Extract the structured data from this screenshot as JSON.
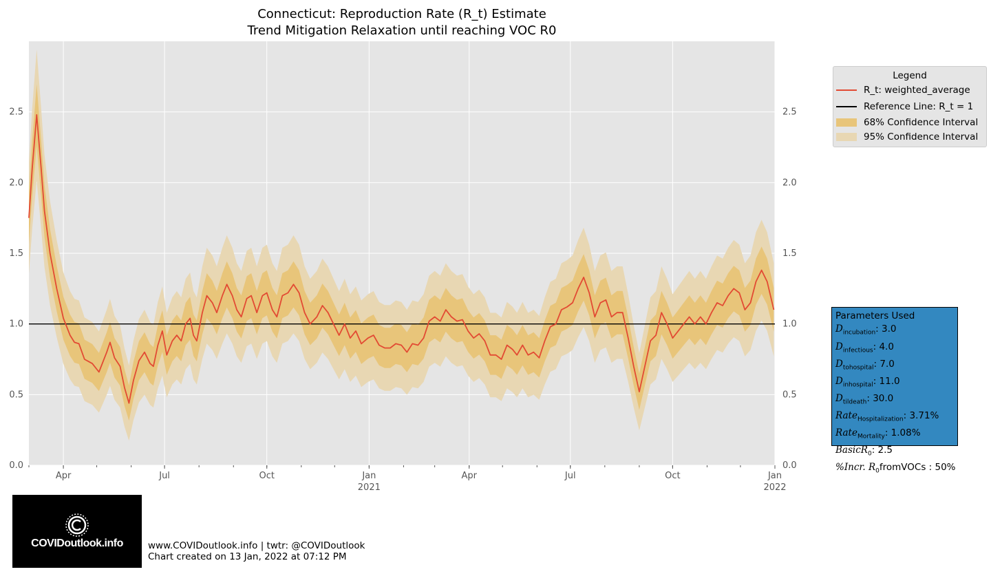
{
  "colors": {
    "plot_bg": "#e5e5e5",
    "grid": "#ffffff",
    "line": "#e24a33",
    "reference": "#000000",
    "ci68": "#e8c57a",
    "ci95": "#e8d7b3",
    "params_bg": "#3388c0"
  },
  "chart_data": {
    "type": "line",
    "title": "Connecticut: Reproduction Rate (R_t) Estimate",
    "subtitle": "Trend Mitigation Relaxation until reaching VOC R0",
    "xlabel": "",
    "ylabel": "",
    "x_range": [
      "2020-03-01",
      "2022-01-01"
    ],
    "ylim": [
      0,
      3.0
    ],
    "grid": true,
    "legend_position": "right",
    "y_ticks": [
      "0.0",
      "0.5",
      "1.0",
      "1.5",
      "2.0",
      "2.5"
    ],
    "x_ticks": [
      {
        "date": "2020-04-01",
        "label": "Apr"
      },
      {
        "date": "2020-07-01",
        "label": "Jul"
      },
      {
        "date": "2020-10-01",
        "label": "Oct"
      },
      {
        "date": "2021-01-01",
        "label": "Jan\n2021"
      },
      {
        "date": "2021-04-01",
        "label": "Apr"
      },
      {
        "date": "2021-07-01",
        "label": "Jul"
      },
      {
        "date": "2021-10-01",
        "label": "Oct"
      },
      {
        "date": "2022-01-01",
        "label": "Jan\n2022"
      }
    ],
    "reference_line": 1.0,
    "series": [
      {
        "name": "R_t: weighted_average",
        "points": [
          [
            "2020-03-01",
            1.75
          ],
          [
            "2020-03-04",
            2.1
          ],
          [
            "2020-03-08",
            2.48
          ],
          [
            "2020-03-12",
            2.1
          ],
          [
            "2020-03-15",
            1.8
          ],
          [
            "2020-03-20",
            1.5
          ],
          [
            "2020-03-26",
            1.25
          ],
          [
            "2020-04-01",
            1.04
          ],
          [
            "2020-04-07",
            0.92
          ],
          [
            "2020-04-11",
            0.87
          ],
          [
            "2020-04-15",
            0.86
          ],
          [
            "2020-04-20",
            0.75
          ],
          [
            "2020-04-27",
            0.72
          ],
          [
            "2020-05-03",
            0.66
          ],
          [
            "2020-05-10",
            0.8
          ],
          [
            "2020-05-13",
            0.87
          ],
          [
            "2020-05-17",
            0.76
          ],
          [
            "2020-05-22",
            0.7
          ],
          [
            "2020-05-26",
            0.55
          ],
          [
            "2020-05-30",
            0.44
          ],
          [
            "2020-06-03",
            0.6
          ],
          [
            "2020-06-08",
            0.74
          ],
          [
            "2020-06-13",
            0.8
          ],
          [
            "2020-06-18",
            0.72
          ],
          [
            "2020-06-21",
            0.7
          ],
          [
            "2020-06-25",
            0.85
          ],
          [
            "2020-06-29",
            0.95
          ],
          [
            "2020-07-03",
            0.78
          ],
          [
            "2020-07-08",
            0.88
          ],
          [
            "2020-07-12",
            0.92
          ],
          [
            "2020-07-16",
            0.88
          ],
          [
            "2020-07-20",
            1.0
          ],
          [
            "2020-07-24",
            1.04
          ],
          [
            "2020-07-27",
            0.92
          ],
          [
            "2020-07-30",
            0.88
          ],
          [
            "2020-08-04",
            1.08
          ],
          [
            "2020-08-08",
            1.2
          ],
          [
            "2020-08-13",
            1.15
          ],
          [
            "2020-08-17",
            1.08
          ],
          [
            "2020-08-22",
            1.2
          ],
          [
            "2020-08-26",
            1.28
          ],
          [
            "2020-08-31",
            1.2
          ],
          [
            "2020-09-04",
            1.1
          ],
          [
            "2020-09-08",
            1.05
          ],
          [
            "2020-09-13",
            1.18
          ],
          [
            "2020-09-17",
            1.2
          ],
          [
            "2020-09-22",
            1.08
          ],
          [
            "2020-09-27",
            1.2
          ],
          [
            "2020-10-01",
            1.22
          ],
          [
            "2020-10-06",
            1.1
          ],
          [
            "2020-10-10",
            1.05
          ],
          [
            "2020-10-15",
            1.2
          ],
          [
            "2020-10-20",
            1.22
          ],
          [
            "2020-10-25",
            1.28
          ],
          [
            "2020-10-30",
            1.22
          ],
          [
            "2020-11-04",
            1.08
          ],
          [
            "2020-11-09",
            1.0
          ],
          [
            "2020-11-15",
            1.05
          ],
          [
            "2020-11-20",
            1.13
          ],
          [
            "2020-11-25",
            1.08
          ],
          [
            "2020-11-30",
            1.0
          ],
          [
            "2020-12-05",
            0.92
          ],
          [
            "2020-12-10",
            1.0
          ],
          [
            "2020-12-15",
            0.9
          ],
          [
            "2020-12-20",
            0.95
          ],
          [
            "2020-12-25",
            0.86
          ],
          [
            "2020-12-31",
            0.9
          ],
          [
            "2021-01-05",
            0.92
          ],
          [
            "2021-01-10",
            0.85
          ],
          [
            "2021-01-15",
            0.83
          ],
          [
            "2021-01-20",
            0.83
          ],
          [
            "2021-01-25",
            0.86
          ],
          [
            "2021-01-30",
            0.85
          ],
          [
            "2021-02-04",
            0.8
          ],
          [
            "2021-02-09",
            0.86
          ],
          [
            "2021-02-14",
            0.85
          ],
          [
            "2021-02-19",
            0.9
          ],
          [
            "2021-02-24",
            1.02
          ],
          [
            "2021-03-01",
            1.05
          ],
          [
            "2021-03-06",
            1.02
          ],
          [
            "2021-03-11",
            1.1
          ],
          [
            "2021-03-16",
            1.05
          ],
          [
            "2021-03-21",
            1.02
          ],
          [
            "2021-03-26",
            1.03
          ],
          [
            "2021-03-31",
            0.95
          ],
          [
            "2021-04-05",
            0.9
          ],
          [
            "2021-04-10",
            0.93
          ],
          [
            "2021-04-15",
            0.88
          ],
          [
            "2021-04-20",
            0.78
          ],
          [
            "2021-04-25",
            0.78
          ],
          [
            "2021-04-30",
            0.75
          ],
          [
            "2021-05-05",
            0.85
          ],
          [
            "2021-05-10",
            0.82
          ],
          [
            "2021-05-14",
            0.78
          ],
          [
            "2021-05-19",
            0.85
          ],
          [
            "2021-05-24",
            0.78
          ],
          [
            "2021-05-29",
            0.8
          ],
          [
            "2021-06-03",
            0.76
          ],
          [
            "2021-06-08",
            0.88
          ],
          [
            "2021-06-13",
            0.98
          ],
          [
            "2021-06-18",
            1.0
          ],
          [
            "2021-06-23",
            1.1
          ],
          [
            "2021-06-28",
            1.12
          ],
          [
            "2021-07-03",
            1.15
          ],
          [
            "2021-07-08",
            1.25
          ],
          [
            "2021-07-13",
            1.33
          ],
          [
            "2021-07-18",
            1.22
          ],
          [
            "2021-07-23",
            1.05
          ],
          [
            "2021-07-28",
            1.15
          ],
          [
            "2021-08-02",
            1.17
          ],
          [
            "2021-08-07",
            1.05
          ],
          [
            "2021-08-12",
            1.08
          ],
          [
            "2021-08-17",
            1.08
          ],
          [
            "2021-08-22",
            0.9
          ],
          [
            "2021-08-27",
            0.7
          ],
          [
            "2021-09-01",
            0.52
          ],
          [
            "2021-09-06",
            0.7
          ],
          [
            "2021-09-11",
            0.88
          ],
          [
            "2021-09-16",
            0.92
          ],
          [
            "2021-09-21",
            1.08
          ],
          [
            "2021-09-26",
            1.0
          ],
          [
            "2021-10-01",
            0.9
          ],
          [
            "2021-10-06",
            0.95
          ],
          [
            "2021-10-11",
            1.0
          ],
          [
            "2021-10-16",
            1.05
          ],
          [
            "2021-10-21",
            1.0
          ],
          [
            "2021-10-26",
            1.05
          ],
          [
            "2021-10-31",
            1.0
          ],
          [
            "2021-11-05",
            1.08
          ],
          [
            "2021-11-10",
            1.15
          ],
          [
            "2021-11-15",
            1.13
          ],
          [
            "2021-11-20",
            1.2
          ],
          [
            "2021-11-25",
            1.25
          ],
          [
            "2021-11-30",
            1.22
          ],
          [
            "2021-12-05",
            1.1
          ],
          [
            "2021-12-10",
            1.15
          ],
          [
            "2021-12-15",
            1.3
          ],
          [
            "2021-12-20",
            1.38
          ],
          [
            "2021-12-25",
            1.3
          ],
          [
            "2021-12-31",
            1.1
          ]
        ]
      },
      {
        "name": "Reference Line: R_t = 1",
        "value": 1.0
      }
    ],
    "intervals": [
      {
        "name": "68% Confidence Interval",
        "half_width": 0.15
      },
      {
        "name": "95% Confidence Interval",
        "half_width": 0.32
      }
    ]
  },
  "legend": {
    "title": "Legend",
    "items": [
      {
        "label": "R_t: weighted_average",
        "kind": "line",
        "color": "#e24a33"
      },
      {
        "label": "Reference Line: R_t = 1",
        "kind": "line",
        "color": "#000000"
      },
      {
        "label": "68% Confidence Interval",
        "kind": "patch",
        "color": "#e8c57a"
      },
      {
        "label": "95% Confidence Interval",
        "kind": "patch",
        "color": "#e8d7b3"
      }
    ]
  },
  "parameters": {
    "title": "Parameters Used",
    "items": [
      {
        "name": "D",
        "sub": "incubation",
        "value": ": 3.0"
      },
      {
        "name": "D",
        "sub": "infectious",
        "value": ": 4.0"
      },
      {
        "name": "D",
        "sub": "tohospital",
        "value": ": 7.0"
      },
      {
        "name": "D",
        "sub": "inhospital",
        "value": ": 11.0"
      },
      {
        "name": "D",
        "sub": "tildeath",
        "value": ": 30.0"
      },
      {
        "name": "Rate",
        "sub": "Hospitalization",
        "value": ": 3.71%"
      },
      {
        "name": "Rate",
        "sub": "Mortality",
        "value": ": 1.08%"
      },
      {
        "name": "BasicR",
        "sub": "0",
        "value": ": 2.5"
      },
      {
        "name": "%Incr. R",
        "sub": "0",
        "value": "fromVOCs : 50%"
      }
    ]
  },
  "logo": {
    "text": "COVIDoutlook.info",
    "icon": "virus-c-icon"
  },
  "footer": {
    "line1": "www.COVIDoutlook.info | twtr: @COVIDoutlook",
    "line2": "Chart created on 13 Jan, 2022 at 07:12 PM"
  }
}
